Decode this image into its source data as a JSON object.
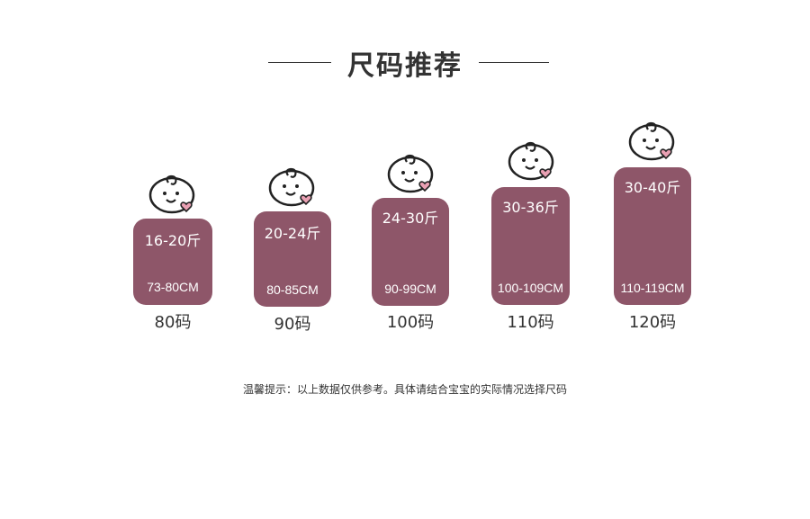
{
  "title": "尺码推荐",
  "brand_color": "#8e5669",
  "sizes": [
    {
      "weight": "16-20斤",
      "height": "73-80CM",
      "size": "80码",
      "icon": "baby-face-icon"
    },
    {
      "weight": "20-24斤",
      "height": "80-85CM",
      "size": "90码",
      "icon": "baby-face-icon"
    },
    {
      "weight": "24-30斤",
      "height": "90-99CM",
      "size": "100码",
      "icon": "baby-face-icon"
    },
    {
      "weight": "30-36斤",
      "height": "100-109CM",
      "size": "110码",
      "icon": "baby-face-icon"
    },
    {
      "weight": "30-40斤",
      "height": "110-119CM",
      "size": "120码",
      "icon": "baby-face-icon"
    }
  ],
  "note": "温馨提示：以上数据仅供参考。具体请结合宝宝的实际情况选择尺码"
}
